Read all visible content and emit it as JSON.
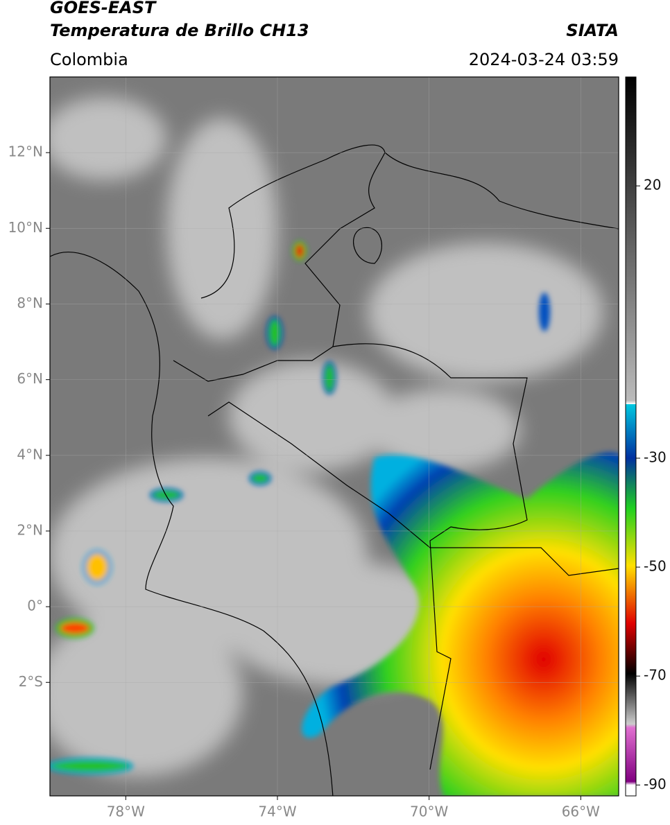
{
  "header": {
    "title": "GOES-EAST",
    "subtitle": "Temperatura de Brillo CH13",
    "region": "Colombia",
    "agency": "SIATA",
    "datetime": "2024-03-24 03:59"
  },
  "map": {
    "xlim": [
      -80,
      -65
    ],
    "ylim": [
      -5,
      14
    ],
    "xticks": [
      {
        "value": -78,
        "label": "78°W"
      },
      {
        "value": -74,
        "label": "74°W"
      },
      {
        "value": -70,
        "label": "70°W"
      },
      {
        "value": -66,
        "label": "66°W"
      }
    ],
    "yticks": [
      {
        "value": 12,
        "label": "12°N"
      },
      {
        "value": 10,
        "label": "10°N"
      },
      {
        "value": 8,
        "label": "8°N"
      },
      {
        "value": 6,
        "label": "6°N"
      },
      {
        "value": 4,
        "label": "4°N"
      },
      {
        "value": 2,
        "label": "2°N"
      },
      {
        "value": 0,
        "label": "0°"
      },
      {
        "value": -2,
        "label": "2°S"
      }
    ]
  },
  "colorbar": {
    "range": [
      40,
      -92
    ],
    "ticks": [
      20,
      -30,
      -50,
      -70,
      -90
    ]
  }
}
